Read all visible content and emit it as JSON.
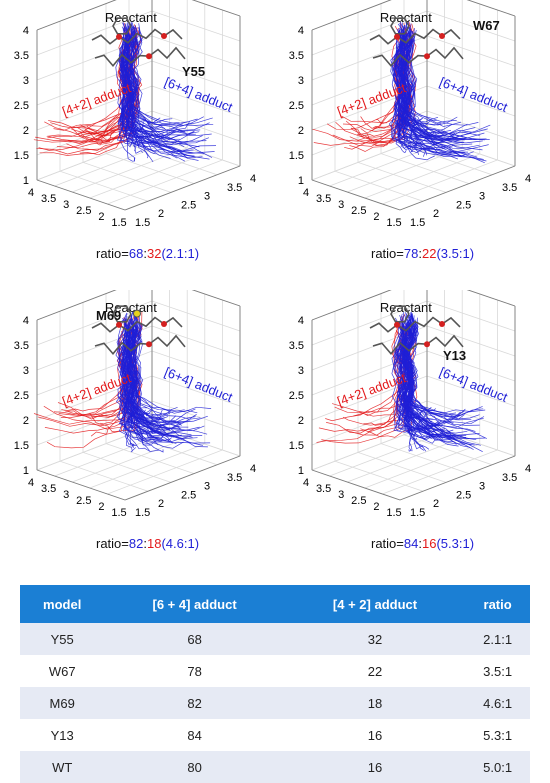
{
  "chart_data": [
    {
      "type": "line",
      "model_label": "Y55",
      "label_reactant": "Reactant",
      "label_42": "[4+2] adduct",
      "label_64": "[6+4] adduct",
      "ratio_prefix": "ratio=",
      "ratio_a": "68",
      "ratio_sep": ":",
      "ratio_b": "32",
      "ratio_fold": "2.1",
      "ratio_tail": ":1",
      "z_ticks": [
        "1",
        "1.5",
        "2",
        "2.5",
        "3",
        "3.5",
        "4"
      ],
      "left_ticks": [
        "4",
        "3.5",
        "3",
        "2.5",
        "2",
        "1.5"
      ],
      "right_ticks": [
        "1.5",
        "2",
        "2.5",
        "3",
        "3.5",
        "4"
      ],
      "zlim": [
        1,
        4
      ],
      "red_fraction": 0.32,
      "blue_fraction": 0.68,
      "series_colors": {
        "red": "#e31a1c",
        "blue": "#1f1fd6"
      }
    },
    {
      "type": "line",
      "model_label": "W67",
      "label_reactant": "Reactant",
      "label_42": "[4+2] adduct",
      "label_64": "[6+4] adduct",
      "ratio_prefix": "ratio=",
      "ratio_a": "78",
      "ratio_sep": ":",
      "ratio_b": "22",
      "ratio_fold": "3.5",
      "ratio_tail": ":1",
      "z_ticks": [
        "1",
        "1.5",
        "2",
        "2.5",
        "3",
        "3.5",
        "4"
      ],
      "left_ticks": [
        "4",
        "3.5",
        "3",
        "2.5",
        "2",
        "1.5"
      ],
      "right_ticks": [
        "1.5",
        "2",
        "2.5",
        "3",
        "3.5",
        "4"
      ],
      "zlim": [
        1,
        4
      ],
      "red_fraction": 0.22,
      "blue_fraction": 0.78,
      "series_colors": {
        "red": "#e31a1c",
        "blue": "#1f1fd6"
      }
    },
    {
      "type": "line",
      "model_label": "M69",
      "label_reactant": "Reactant",
      "label_42": "[4+2] adduct",
      "label_64": "[6+4] adduct",
      "ratio_prefix": "ratio=",
      "ratio_a": "82",
      "ratio_sep": ":",
      "ratio_b": "18",
      "ratio_fold": "4.6",
      "ratio_tail": ":1",
      "z_ticks": [
        "1",
        "1.5",
        "2",
        "2.5",
        "3",
        "3.5",
        "4"
      ],
      "left_ticks": [
        "4",
        "3.5",
        "3",
        "2.5",
        "2",
        "1.5"
      ],
      "right_ticks": [
        "1.5",
        "2",
        "2.5",
        "3",
        "3.5",
        "4"
      ],
      "zlim": [
        1,
        4
      ],
      "red_fraction": 0.18,
      "blue_fraction": 0.82,
      "series_colors": {
        "red": "#e31a1c",
        "blue": "#1f1fd6"
      }
    },
    {
      "type": "line",
      "model_label": "Y13",
      "label_reactant": "Reactant",
      "label_42": "[4+2] adduct",
      "label_64": "[6+4] adduct",
      "ratio_prefix": "ratio=",
      "ratio_a": "84",
      "ratio_sep": ":",
      "ratio_b": "16",
      "ratio_fold": "5.3",
      "ratio_tail": ":1",
      "z_ticks": [
        "1",
        "1.5",
        "2",
        "2.5",
        "3",
        "3.5",
        "4"
      ],
      "left_ticks": [
        "4",
        "3.5",
        "3",
        "2.5",
        "2",
        "1.5"
      ],
      "right_ticks": [
        "1.5",
        "2",
        "2.5",
        "3",
        "3.5",
        "4"
      ],
      "zlim": [
        1,
        4
      ],
      "red_fraction": 0.16,
      "blue_fraction": 0.84,
      "series_colors": {
        "red": "#e31a1c",
        "blue": "#1f1fd6"
      }
    },
    {
      "type": "table",
      "columns": [
        "model",
        "[6 + 4] adduct",
        "[4 + 2] adduct",
        "ratio"
      ],
      "rows": [
        [
          "Y55",
          "68",
          "32",
          "2.1:1"
        ],
        [
          "W67",
          "78",
          "22",
          "3.5:1"
        ],
        [
          "M69",
          "82",
          "18",
          "4.6:1"
        ],
        [
          "Y13",
          "84",
          "16",
          "5.3:1"
        ],
        [
          "WT",
          "80",
          "16",
          "5.0:1"
        ]
      ],
      "header_color": "#1b7fd4",
      "stripe_color": "#e6eaf4"
    }
  ]
}
